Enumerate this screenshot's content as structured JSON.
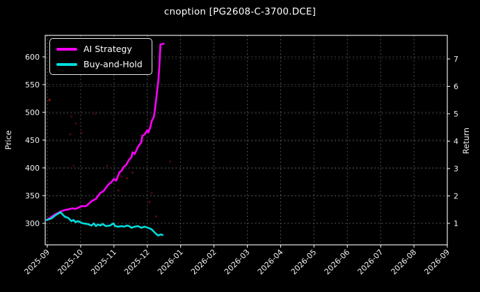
{
  "chart_data": {
    "type": "line",
    "title": "cnoption [PG2608-C-3700.DCE]",
    "background_color": "#000000",
    "grid": true,
    "grid_color": "#666666",
    "legend_position": "upper left",
    "x_tick_labels": [
      "2025-09",
      "2025-10",
      "2025-11",
      "2025-12",
      "2026-01",
      "2026-02",
      "2026-03",
      "2026-04",
      "2026-05",
      "2026-06",
      "2026-07",
      "2026-08",
      "2026-09"
    ],
    "left_axis": {
      "label": "Price",
      "ticks": [
        300,
        350,
        400,
        450,
        500,
        550,
        600
      ],
      "range": [
        261,
        639
      ]
    },
    "right_axis": {
      "label": "Return",
      "ticks": [
        1,
        2,
        3,
        4,
        5,
        6,
        7
      ],
      "range": [
        0.22,
        7.86
      ]
    },
    "series": [
      {
        "name": "AI Strategy",
        "color": "#ff00ff",
        "axis": "price",
        "points": [
          [
            "2025-08-31",
            306
          ],
          [
            "2025-09-08",
            316
          ],
          [
            "2025-09-13",
            321
          ],
          [
            "2025-09-17",
            324
          ],
          [
            "2025-09-20",
            325
          ],
          [
            "2025-09-24",
            327
          ],
          [
            "2025-09-27",
            326
          ],
          [
            "2025-10-02",
            331
          ],
          [
            "2025-10-06",
            331
          ],
          [
            "2025-10-11",
            340
          ],
          [
            "2025-10-15",
            344
          ],
          [
            "2025-10-19",
            355
          ],
          [
            "2025-10-22",
            358
          ],
          [
            "2025-10-24",
            364
          ],
          [
            "2025-10-26",
            369
          ],
          [
            "2025-10-29",
            374
          ],
          [
            "2025-11-01",
            380
          ],
          [
            "2025-11-03",
            377
          ],
          [
            "2025-11-06",
            392
          ],
          [
            "2025-11-08",
            395
          ],
          [
            "2025-11-10",
            402
          ],
          [
            "2025-11-12",
            405
          ],
          [
            "2025-11-15",
            415
          ],
          [
            "2025-11-17",
            419
          ],
          [
            "2025-11-18",
            428
          ],
          [
            "2025-11-20",
            425
          ],
          [
            "2025-11-23",
            438
          ],
          [
            "2025-11-26",
            446
          ],
          [
            "2025-11-27",
            458
          ],
          [
            "2025-11-29",
            460
          ],
          [
            "2025-12-01",
            468
          ],
          [
            "2025-12-02",
            464
          ],
          [
            "2025-12-04",
            475
          ],
          [
            "2025-12-05",
            484
          ],
          [
            "2025-12-07",
            492
          ],
          [
            "2025-12-08",
            505
          ],
          [
            "2025-12-09",
            521
          ],
          [
            "2025-12-10",
            539
          ],
          [
            "2025-12-11",
            556
          ],
          [
            "2025-12-12",
            580
          ],
          [
            "2025-12-13",
            622
          ],
          [
            "2025-12-16",
            624
          ]
        ]
      },
      {
        "name": "Buy-and-Hold",
        "color": "#00dede",
        "axis": "price",
        "points": [
          [
            "2025-08-31",
            306
          ],
          [
            "2025-09-05",
            309
          ],
          [
            "2025-09-08",
            314
          ],
          [
            "2025-09-13",
            320
          ],
          [
            "2025-09-17",
            312
          ],
          [
            "2025-09-20",
            310
          ],
          [
            "2025-09-23",
            304
          ],
          [
            "2025-09-25",
            306
          ],
          [
            "2025-09-27",
            302
          ],
          [
            "2025-09-29",
            304
          ],
          [
            "2025-10-03",
            300
          ],
          [
            "2025-10-07",
            299
          ],
          [
            "2025-10-11",
            296
          ],
          [
            "2025-10-13",
            300
          ],
          [
            "2025-10-15",
            295
          ],
          [
            "2025-10-17",
            298
          ],
          [
            "2025-10-19",
            296
          ],
          [
            "2025-10-21",
            299
          ],
          [
            "2025-10-24",
            295
          ],
          [
            "2025-10-28",
            296
          ],
          [
            "2025-10-31",
            300
          ],
          [
            "2025-11-02",
            295
          ],
          [
            "2025-11-05",
            294
          ],
          [
            "2025-11-08",
            295
          ],
          [
            "2025-11-10",
            294
          ],
          [
            "2025-11-13",
            296
          ],
          [
            "2025-11-15",
            295
          ],
          [
            "2025-11-17",
            292
          ],
          [
            "2025-11-20",
            294
          ],
          [
            "2025-11-23",
            295
          ],
          [
            "2025-11-26",
            292
          ],
          [
            "2025-11-29",
            294
          ],
          [
            "2025-12-03",
            291
          ],
          [
            "2025-12-05",
            289
          ],
          [
            "2025-12-07",
            285
          ],
          [
            "2025-12-09",
            281
          ],
          [
            "2025-12-11",
            278
          ],
          [
            "2025-12-13",
            280
          ],
          [
            "2025-12-15",
            279
          ]
        ]
      }
    ],
    "scatter": {
      "name": "trade-return-dots",
      "color": "#a31515",
      "axis": "return",
      "points": [
        [
          "2025-09-03",
          5.5,
          0.9
        ],
        [
          "2025-09-22",
          4.25,
          0.4
        ],
        [
          "2025-09-23",
          4.9,
          0.45
        ],
        [
          "2025-09-25",
          3.1,
          0.35
        ],
        [
          "2025-09-27",
          4.65,
          0.4
        ],
        [
          "2025-10-02",
          4.3,
          0.4
        ],
        [
          "2025-10-14",
          5.0,
          0.35
        ],
        [
          "2025-10-25",
          3.1,
          0.45
        ],
        [
          "2025-11-05",
          2.2,
          0.5
        ],
        [
          "2025-11-08",
          2.7,
          0.45
        ],
        [
          "2025-11-13",
          2.65,
          0.5
        ],
        [
          "2025-11-18",
          2.85,
          0.55
        ],
        [
          "2025-12-03",
          1.78,
          0.5
        ],
        [
          "2025-12-05",
          2.1,
          0.45
        ],
        [
          "2025-12-09",
          1.25,
          0.5
        ],
        [
          "2025-12-22",
          3.25,
          0.4
        ]
      ]
    }
  }
}
